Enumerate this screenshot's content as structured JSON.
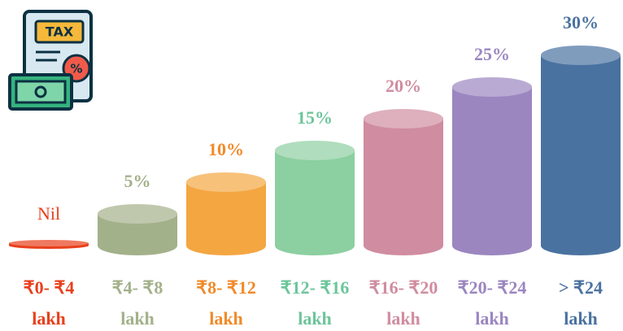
{
  "chart_data": {
    "type": "cylinder",
    "categories": [
      "₹0- ₹4 lakh",
      "₹4- ₹8 lakh",
      "₹8- ₹12 lakh",
      "₹12- ₹16 lakh",
      "₹16- ₹20 lakh",
      "₹20- ₹24 lakh",
      "> ₹24 lakh"
    ],
    "values": [
      0,
      5,
      10,
      15,
      20,
      25,
      30
    ],
    "value_labels": [
      "Nil",
      "5%",
      "10%",
      "15%",
      "20%",
      "25%",
      "30%"
    ],
    "colors": [
      "#e8401c",
      "#a3b18a",
      "#f4a641",
      "#8ccfa0",
      "#d08ca0",
      "#9b86c0",
      "#4a72a0"
    ],
    "label_colors": [
      "#e8401c",
      "#a3b18a",
      "#f08a2a",
      "#6cc59a",
      "#d08ca0",
      "#9b86c0",
      "#4a72a0"
    ]
  }
}
